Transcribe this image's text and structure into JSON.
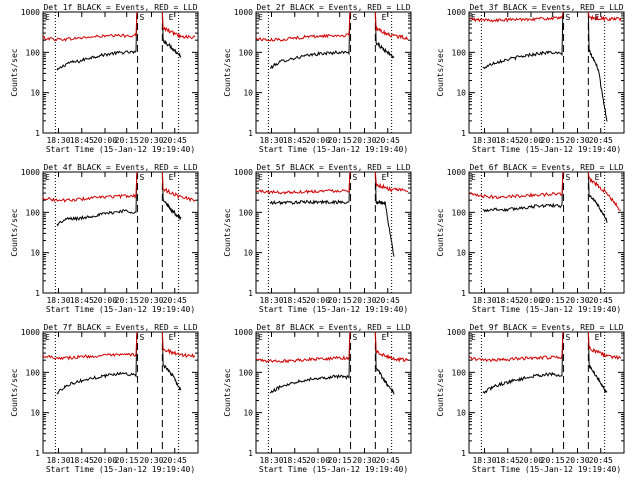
{
  "figure": {
    "time_ticks": [
      "18:30",
      "18:45",
      "20:00",
      "20:15",
      "20:30",
      "20:45"
    ],
    "y_ticks": [
      "1",
      "10",
      "100",
      "1000"
    ],
    "ylabel": "Counts/sec",
    "xlabel": "Start Time (15-Jan-12 19:19:40)",
    "markers": {
      "start": "E",
      "saa": "S",
      "end": "E"
    }
  },
  "chart_data": [
    {
      "type": "line",
      "title": "Det 1f BLACK = Events, RED = LLD",
      "ylim": [
        1,
        1000
      ],
      "yscale": "log",
      "series": [
        {
          "name": "Events",
          "color": "#000000",
          "profile": [
            35,
            55,
            60,
            75,
            85,
            95,
            100,
            100
          ],
          "post": [
            200,
            130,
            80
          ]
        },
        {
          "name": "LLD",
          "color": "#d00000",
          "profile": [
            230,
            210,
            215,
            230,
            245,
            255,
            260,
            265
          ],
          "post": [
            400,
            260,
            230
          ]
        }
      ]
    },
    {
      "type": "line",
      "title": "Det 2f BLACK = Events, RED = LLD",
      "ylim": [
        1,
        1000
      ],
      "yscale": "log",
      "series": [
        {
          "name": "Events",
          "color": "#000000",
          "profile": [
            40,
            60,
            70,
            80,
            90,
            95,
            100,
            100
          ],
          "post": [
            170,
            110,
            75
          ]
        },
        {
          "name": "LLD",
          "color": "#d00000",
          "profile": [
            220,
            200,
            210,
            230,
            245,
            255,
            260,
            265
          ],
          "post": [
            380,
            260,
            230
          ]
        }
      ]
    },
    {
      "type": "line",
      "title": "Det 3f BLACK = Events, RED = LLD",
      "ylim": [
        1,
        1000
      ],
      "yscale": "log",
      "series": [
        {
          "name": "Events",
          "color": "#000000",
          "profile": [
            40,
            55,
            65,
            75,
            85,
            95,
            100,
            90
          ],
          "post": [
            110,
            40,
            2
          ]
        },
        {
          "name": "LLD",
          "color": "#d00000",
          "profile": [
            660,
            630,
            620,
            640,
            660,
            680,
            690,
            700
          ],
          "post": [
            720,
            680,
            670
          ]
        }
      ]
    },
    {
      "type": "line",
      "title": "Det 4f BLACK = Events, RED = LLD",
      "ylim": [
        1,
        1000
      ],
      "yscale": "log",
      "series": [
        {
          "name": "Events",
          "color": "#000000",
          "profile": [
            50,
            70,
            70,
            80,
            90,
            100,
            110,
            100
          ],
          "post": [
            200,
            110,
            70
          ]
        },
        {
          "name": "LLD",
          "color": "#d00000",
          "profile": [
            230,
            200,
            200,
            215,
            230,
            245,
            250,
            260
          ],
          "post": [
            380,
            250,
            200
          ]
        }
      ]
    },
    {
      "type": "line",
      "title": "Det 5f BLACK = Events, RED = LLD",
      "ylim": [
        1,
        1000
      ],
      "yscale": "log",
      "series": [
        {
          "name": "Events",
          "color": "#000000",
          "profile": [
            170,
            175,
            175,
            180,
            180,
            180,
            180,
            175
          ],
          "post": [
            175,
            170,
            8
          ]
        },
        {
          "name": "LLD",
          "color": "#d00000",
          "profile": [
            340,
            320,
            310,
            320,
            330,
            340,
            345,
            350
          ],
          "post": [
            500,
            360,
            350
          ]
        }
      ]
    },
    {
      "type": "line",
      "title": "Det 6f BLACK = Events, RED = LLD",
      "ylim": [
        1,
        1000
      ],
      "yscale": "log",
      "series": [
        {
          "name": "Events",
          "color": "#000000",
          "profile": [
            110,
            120,
            115,
            125,
            135,
            145,
            150,
            140
          ],
          "post": [
            280,
            150,
            60
          ]
        },
        {
          "name": "LLD",
          "color": "#d00000",
          "profile": [
            280,
            250,
            240,
            250,
            260,
            270,
            280,
            290
          ],
          "post": [
            700,
            330,
            110
          ]
        }
      ]
    },
    {
      "type": "line",
      "title": "Det 7f BLACK = Events, RED = LLD",
      "ylim": [
        1,
        1000
      ],
      "yscale": "log",
      "series": [
        {
          "name": "Events",
          "color": "#000000",
          "profile": [
            30,
            50,
            60,
            70,
            80,
            90,
            95,
            85
          ],
          "post": [
            150,
            90,
            35
          ]
        },
        {
          "name": "LLD",
          "color": "#d00000",
          "profile": [
            260,
            230,
            230,
            245,
            255,
            265,
            270,
            275
          ],
          "post": [
            380,
            270,
            260
          ]
        }
      ]
    },
    {
      "type": "line",
      "title": "Det 8f BLACK = Events, RED = LLD",
      "ylim": [
        1,
        1000
      ],
      "yscale": "log",
      "series": [
        {
          "name": "Events",
          "color": "#000000",
          "profile": [
            30,
            45,
            55,
            65,
            70,
            75,
            80,
            75
          ],
          "post": [
            130,
            60,
            30
          ]
        },
        {
          "name": "LLD",
          "color": "#d00000",
          "profile": [
            210,
            190,
            190,
            200,
            210,
            220,
            225,
            230
          ],
          "post": [
            330,
            220,
            200
          ]
        }
      ]
    },
    {
      "type": "line",
      "title": "Det 9f BLACK = Events, RED = LLD",
      "ylim": [
        1,
        1000
      ],
      "yscale": "log",
      "series": [
        {
          "name": "Events",
          "color": "#000000",
          "profile": [
            30,
            45,
            55,
            65,
            75,
            85,
            90,
            80
          ],
          "post": [
            150,
            70,
            30
          ]
        },
        {
          "name": "LLD",
          "color": "#d00000",
          "profile": [
            230,
            200,
            200,
            210,
            220,
            230,
            235,
            240
          ],
          "post": [
            400,
            260,
            230
          ]
        }
      ]
    }
  ]
}
